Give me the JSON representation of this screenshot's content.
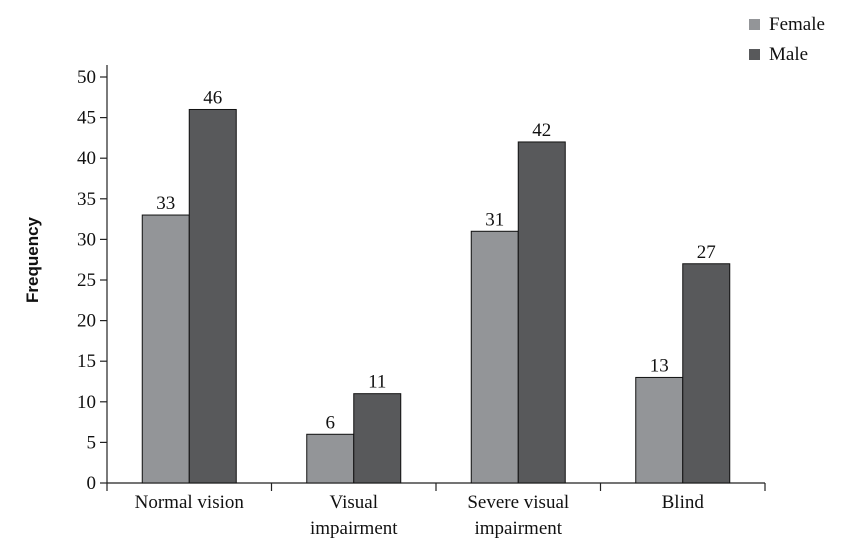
{
  "chart_data": {
    "type": "bar",
    "categories": [
      [
        "Normal vision"
      ],
      [
        "Visual",
        "impairment"
      ],
      [
        "Severe visual",
        "impairment"
      ],
      [
        "Blind"
      ]
    ],
    "series": [
      {
        "name": "Female",
        "values": [
          33,
          6,
          31,
          13
        ],
        "labels": [
          "33",
          "6",
          "31",
          "13"
        ],
        "color": "#939598"
      },
      {
        "name": "Male",
        "values": [
          46,
          11,
          42,
          27
        ],
        "labels": [
          "46",
          "11",
          "42",
          "27"
        ],
        "color": "#58595b"
      }
    ],
    "ylabel": "Frequency",
    "ylim": [
      0,
      50
    ],
    "yticks": [
      0,
      5,
      10,
      15,
      20,
      25,
      30,
      35,
      40,
      45,
      50
    ],
    "legend_position": "top-right",
    "grid": false
  }
}
